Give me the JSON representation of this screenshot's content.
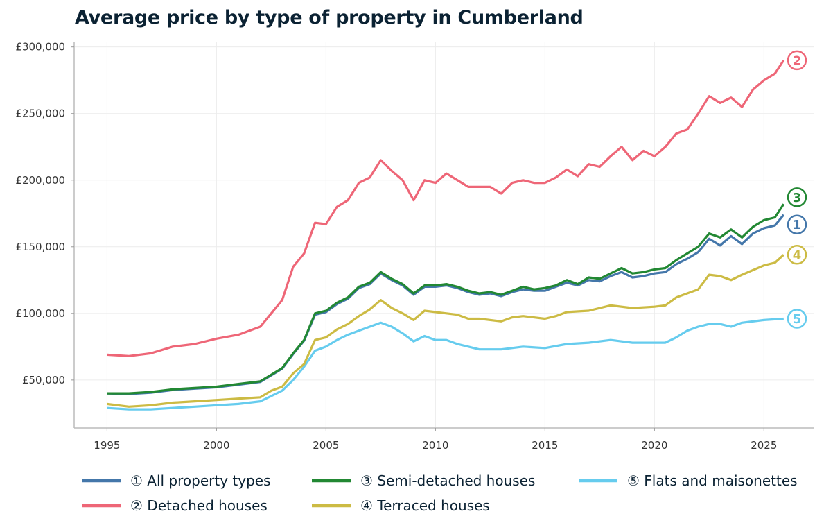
{
  "chart_data": {
    "type": "line",
    "title": "Average price by type of property in Cumberland",
    "xlabel": "",
    "ylabel": "",
    "xlim": [
      1993.5,
      2027.3
    ],
    "ylim": [
      14000,
      304000
    ],
    "x_ticks": [
      1995,
      2000,
      2005,
      2010,
      2015,
      2020,
      2025
    ],
    "y_ticks": [
      50000,
      100000,
      150000,
      200000,
      250000,
      300000
    ],
    "y_tick_labels": [
      "£50,000",
      "£100,000",
      "£150,000",
      "£200,000",
      "£250,000",
      "£300,000"
    ],
    "grid": true,
    "legend_placement": "bottom",
    "series": [
      {
        "name": "① All property types",
        "end_label": "1",
        "color": "#4477aa",
        "points": [
          [
            1995,
            40000
          ],
          [
            1996,
            39500
          ],
          [
            1997,
            40500
          ],
          [
            1998,
            42500
          ],
          [
            1999,
            43500
          ],
          [
            2000,
            44500
          ],
          [
            2001,
            46500
          ],
          [
            2002,
            48500
          ],
          [
            2002.5,
            53500
          ],
          [
            2003,
            58500
          ],
          [
            2003.5,
            69500
          ],
          [
            2004,
            79500
          ],
          [
            2004.5,
            99000
          ],
          [
            2005,
            101000
          ],
          [
            2005.5,
            107000
          ],
          [
            2006,
            111000
          ],
          [
            2006.5,
            119000
          ],
          [
            2007,
            122000
          ],
          [
            2007.5,
            130000
          ],
          [
            2008,
            125000
          ],
          [
            2008.5,
            121000
          ],
          [
            2009,
            114000
          ],
          [
            2009.5,
            120000
          ],
          [
            2010,
            120000
          ],
          [
            2010.5,
            121000
          ],
          [
            2011,
            119000
          ],
          [
            2011.5,
            116000
          ],
          [
            2012,
            114000
          ],
          [
            2012.5,
            115000
          ],
          [
            2013,
            113000
          ],
          [
            2013.5,
            116000
          ],
          [
            2014,
            118000
          ],
          [
            2014.5,
            117000
          ],
          [
            2015,
            117000
          ],
          [
            2015.5,
            120000
          ],
          [
            2016,
            123000
          ],
          [
            2016.5,
            121000
          ],
          [
            2017,
            125000
          ],
          [
            2017.5,
            124000
          ],
          [
            2018,
            128000
          ],
          [
            2018.5,
            131000
          ],
          [
            2019,
            127000
          ],
          [
            2019.5,
            128000
          ],
          [
            2020,
            130000
          ],
          [
            2020.5,
            131000
          ],
          [
            2021,
            137000
          ],
          [
            2021.5,
            141000
          ],
          [
            2022,
            146000
          ],
          [
            2022.5,
            156000
          ],
          [
            2023,
            151000
          ],
          [
            2023.5,
            158000
          ],
          [
            2024,
            152000
          ],
          [
            2024.5,
            160000
          ],
          [
            2025,
            164000
          ],
          [
            2025.5,
            166000
          ],
          [
            2025.9,
            174000
          ]
        ]
      },
      {
        "name": "② Detached houses",
        "end_label": "2",
        "color": "#ee6677",
        "points": [
          [
            1995,
            69000
          ],
          [
            1996,
            68000
          ],
          [
            1997,
            70000
          ],
          [
            1998,
            75000
          ],
          [
            1999,
            77000
          ],
          [
            2000,
            81000
          ],
          [
            2001,
            84000
          ],
          [
            2002,
            90000
          ],
          [
            2003,
            110000
          ],
          [
            2003.5,
            135000
          ],
          [
            2004,
            145000
          ],
          [
            2004.5,
            168000
          ],
          [
            2005,
            167000
          ],
          [
            2005.5,
            180000
          ],
          [
            2006,
            185000
          ],
          [
            2006.5,
            198000
          ],
          [
            2007,
            202000
          ],
          [
            2007.5,
            215000
          ],
          [
            2008,
            207000
          ],
          [
            2008.5,
            200000
          ],
          [
            2009,
            185000
          ],
          [
            2009.5,
            200000
          ],
          [
            2010,
            198000
          ],
          [
            2010.5,
            205000
          ],
          [
            2011,
            200000
          ],
          [
            2011.5,
            195000
          ],
          [
            2012,
            195000
          ],
          [
            2012.5,
            195000
          ],
          [
            2013,
            190000
          ],
          [
            2013.5,
            198000
          ],
          [
            2014,
            200000
          ],
          [
            2014.5,
            198000
          ],
          [
            2015,
            198000
          ],
          [
            2015.5,
            202000
          ],
          [
            2016,
            208000
          ],
          [
            2016.5,
            203000
          ],
          [
            2017,
            212000
          ],
          [
            2017.5,
            210000
          ],
          [
            2018,
            218000
          ],
          [
            2018.5,
            225000
          ],
          [
            2019,
            215000
          ],
          [
            2019.5,
            222000
          ],
          [
            2020,
            218000
          ],
          [
            2020.5,
            225000
          ],
          [
            2021,
            235000
          ],
          [
            2021.5,
            238000
          ],
          [
            2022,
            250000
          ],
          [
            2022.5,
            263000
          ],
          [
            2023,
            258000
          ],
          [
            2023.5,
            262000
          ],
          [
            2024,
            255000
          ],
          [
            2024.5,
            268000
          ],
          [
            2025,
            275000
          ],
          [
            2025.5,
            280000
          ],
          [
            2025.9,
            290000
          ]
        ]
      },
      {
        "name": "③ Semi-detached houses",
        "end_label": "3",
        "color": "#228833",
        "points": [
          [
            1995,
            40000
          ],
          [
            1996,
            40000
          ],
          [
            1997,
            41000
          ],
          [
            1998,
            43000
          ],
          [
            1999,
            44000
          ],
          [
            2000,
            45000
          ],
          [
            2001,
            47000
          ],
          [
            2002,
            49000
          ],
          [
            2002.5,
            54000
          ],
          [
            2003,
            59000
          ],
          [
            2003.5,
            70000
          ],
          [
            2004,
            80000
          ],
          [
            2004.5,
            100000
          ],
          [
            2005,
            102000
          ],
          [
            2005.5,
            108000
          ],
          [
            2006,
            112000
          ],
          [
            2006.5,
            120000
          ],
          [
            2007,
            123000
          ],
          [
            2007.5,
            131000
          ],
          [
            2008,
            126000
          ],
          [
            2008.5,
            122000
          ],
          [
            2009,
            115000
          ],
          [
            2009.5,
            121000
          ],
          [
            2010,
            121000
          ],
          [
            2010.5,
            122000
          ],
          [
            2011,
            120000
          ],
          [
            2011.5,
            117000
          ],
          [
            2012,
            115000
          ],
          [
            2012.5,
            116000
          ],
          [
            2013,
            114000
          ],
          [
            2013.5,
            117000
          ],
          [
            2014,
            120000
          ],
          [
            2014.5,
            118000
          ],
          [
            2015,
            119000
          ],
          [
            2015.5,
            121000
          ],
          [
            2016,
            125000
          ],
          [
            2016.5,
            122000
          ],
          [
            2017,
            127000
          ],
          [
            2017.5,
            126000
          ],
          [
            2018,
            130000
          ],
          [
            2018.5,
            134000
          ],
          [
            2019,
            130000
          ],
          [
            2019.5,
            131000
          ],
          [
            2020,
            133000
          ],
          [
            2020.5,
            134000
          ],
          [
            2021,
            140000
          ],
          [
            2021.5,
            145000
          ],
          [
            2022,
            150000
          ],
          [
            2022.5,
            160000
          ],
          [
            2023,
            157000
          ],
          [
            2023.5,
            163000
          ],
          [
            2024,
            157000
          ],
          [
            2024.5,
            165000
          ],
          [
            2025,
            170000
          ],
          [
            2025.5,
            172000
          ],
          [
            2025.9,
            182000
          ]
        ]
      },
      {
        "name": "④ Terraced houses",
        "end_label": "4",
        "color": "#ccbb44",
        "points": [
          [
            1995,
            32000
          ],
          [
            1996,
            30000
          ],
          [
            1997,
            31000
          ],
          [
            1998,
            33000
          ],
          [
            1999,
            34000
          ],
          [
            2000,
            35000
          ],
          [
            2001,
            36000
          ],
          [
            2002,
            37000
          ],
          [
            2002.5,
            42000
          ],
          [
            2003,
            45000
          ],
          [
            2003.5,
            55000
          ],
          [
            2004,
            62000
          ],
          [
            2004.5,
            80000
          ],
          [
            2005,
            82000
          ],
          [
            2005.5,
            88000
          ],
          [
            2006,
            92000
          ],
          [
            2006.5,
            98000
          ],
          [
            2007,
            103000
          ],
          [
            2007.5,
            110000
          ],
          [
            2008,
            104000
          ],
          [
            2008.5,
            100000
          ],
          [
            2009,
            95000
          ],
          [
            2009.5,
            102000
          ],
          [
            2010,
            101000
          ],
          [
            2010.5,
            100000
          ],
          [
            2011,
            99000
          ],
          [
            2011.5,
            96000
          ],
          [
            2012,
            96000
          ],
          [
            2013,
            94000
          ],
          [
            2013.5,
            97000
          ],
          [
            2014,
            98000
          ],
          [
            2015,
            96000
          ],
          [
            2015.5,
            98000
          ],
          [
            2016,
            101000
          ],
          [
            2017,
            102000
          ],
          [
            2018,
            106000
          ],
          [
            2019,
            104000
          ],
          [
            2020,
            105000
          ],
          [
            2020.5,
            106000
          ],
          [
            2021,
            112000
          ],
          [
            2022,
            118000
          ],
          [
            2022.5,
            129000
          ],
          [
            2023,
            128000
          ],
          [
            2023.5,
            125000
          ],
          [
            2024,
            129000
          ],
          [
            2025,
            136000
          ],
          [
            2025.5,
            138000
          ],
          [
            2025.9,
            144000
          ]
        ]
      },
      {
        "name": "⑤ Flats and maisonettes",
        "end_label": "5",
        "color": "#66ccee",
        "points": [
          [
            1995,
            29000
          ],
          [
            1996,
            28000
          ],
          [
            1997,
            28000
          ],
          [
            1998,
            29000
          ],
          [
            1999,
            30000
          ],
          [
            2000,
            31000
          ],
          [
            2001,
            32000
          ],
          [
            2002,
            34000
          ],
          [
            2002.5,
            38000
          ],
          [
            2003,
            42000
          ],
          [
            2003.5,
            50000
          ],
          [
            2004,
            60000
          ],
          [
            2004.5,
            72000
          ],
          [
            2005,
            75000
          ],
          [
            2005.5,
            80000
          ],
          [
            2006,
            84000
          ],
          [
            2006.5,
            87000
          ],
          [
            2007,
            90000
          ],
          [
            2007.5,
            93000
          ],
          [
            2008,
            90000
          ],
          [
            2008.5,
            85000
          ],
          [
            2009,
            79000
          ],
          [
            2009.5,
            83000
          ],
          [
            2010,
            80000
          ],
          [
            2010.5,
            80000
          ],
          [
            2011,
            77000
          ],
          [
            2011.5,
            75000
          ],
          [
            2012,
            73000
          ],
          [
            2013,
            73000
          ],
          [
            2014,
            75000
          ],
          [
            2015,
            74000
          ],
          [
            2016,
            77000
          ],
          [
            2017,
            78000
          ],
          [
            2018,
            80000
          ],
          [
            2019,
            78000
          ],
          [
            2020,
            78000
          ],
          [
            2020.5,
            78000
          ],
          [
            2021,
            82000
          ],
          [
            2021.5,
            87000
          ],
          [
            2022,
            90000
          ],
          [
            2022.5,
            92000
          ],
          [
            2023,
            92000
          ],
          [
            2023.5,
            90000
          ],
          [
            2024,
            93000
          ],
          [
            2025,
            95000
          ],
          [
            2025.9,
            96000
          ]
        ]
      }
    ]
  }
}
